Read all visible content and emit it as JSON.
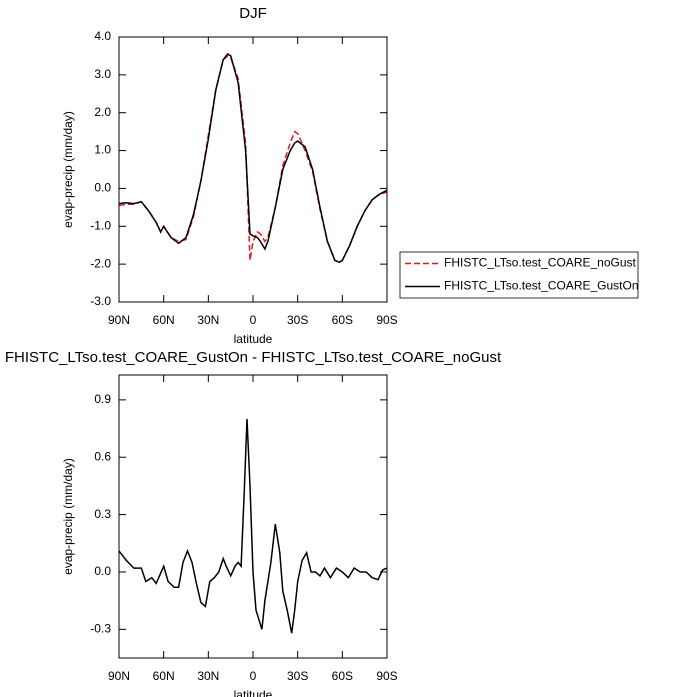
{
  "chart_data": [
    {
      "type": "line",
      "title": "DJF",
      "xlabel": "latitude",
      "ylabel": "evap-precip (mm/day)",
      "x": [
        90,
        85,
        80,
        75,
        70,
        65,
        62,
        60,
        55,
        50,
        45,
        40,
        35,
        30,
        25,
        20,
        17,
        15,
        10,
        5,
        2,
        0,
        -3,
        -5,
        -8,
        -10,
        -15,
        -20,
        -25,
        -28,
        -30,
        -35,
        -40,
        -45,
        -50,
        -55,
        -58,
        -60,
        -65,
        -70,
        -75,
        -80,
        -85,
        -90
      ],
      "series": [
        {
          "name": "FHISTC_LTso.test_COARE_noGust",
          "color": "#e0191c",
          "dash": true,
          "values": [
            -0.45,
            -0.42,
            -0.42,
            -0.35,
            -0.6,
            -0.9,
            -1.15,
            -1.0,
            -1.3,
            -1.4,
            -1.35,
            -0.75,
            0.2,
            1.4,
            2.6,
            3.4,
            3.5,
            3.45,
            2.9,
            1.2,
            -1.9,
            -1.4,
            -1.15,
            -1.2,
            -1.4,
            -1.3,
            -0.5,
            0.6,
            1.2,
            1.5,
            1.45,
            1.0,
            0.45,
            -0.55,
            -1.4,
            -1.9,
            -1.95,
            -1.9,
            -1.5,
            -1.0,
            -0.6,
            -0.3,
            -0.15,
            -0.1
          ]
        },
        {
          "name": "FHISTC_LTso.test_COARE_GustOn",
          "color": "#000000",
          "dash": false,
          "values": [
            -0.4,
            -0.38,
            -0.4,
            -0.35,
            -0.6,
            -0.9,
            -1.15,
            -1.0,
            -1.3,
            -1.45,
            -1.3,
            -0.7,
            0.2,
            1.3,
            2.6,
            3.4,
            3.55,
            3.5,
            2.8,
            1.0,
            -1.2,
            -1.25,
            -1.3,
            -1.4,
            -1.6,
            -1.4,
            -0.5,
            0.5,
            1.0,
            1.2,
            1.25,
            1.1,
            0.5,
            -0.5,
            -1.4,
            -1.9,
            -1.95,
            -1.9,
            -1.5,
            -1.0,
            -0.6,
            -0.3,
            -0.15,
            -0.05
          ]
        }
      ],
      "legend": "right",
      "xlim": [
        90,
        -90
      ],
      "ylim": [
        -3,
        4
      ],
      "xticks": [
        {
          "value": 90,
          "label": "90N"
        },
        {
          "value": 60,
          "label": "60N"
        },
        {
          "value": 30,
          "label": "30N"
        },
        0,
        {
          "value": -30,
          "label": "30S"
        },
        {
          "value": -60,
          "label": "60S"
        },
        {
          "value": -90,
          "label": "90S"
        }
      ],
      "yticks": [
        {
          "value": -3,
          "label": "-3.0"
        },
        {
          "value": -2,
          "label": "-2.0"
        },
        {
          "value": -1,
          "label": "-1.0"
        },
        {
          "value": 0,
          "label": "0.0"
        },
        {
          "value": 1,
          "label": "1.0"
        },
        {
          "value": 2,
          "label": "2.0"
        },
        {
          "value": 3,
          "label": "3.0"
        },
        {
          "value": 4,
          "label": "4.0"
        }
      ]
    },
    {
      "type": "line",
      "title": "FHISTC_LTso.test_COARE_GustOn - FHISTC_LTso.test_COARE_noGust",
      "xlabel": "latitude",
      "ylabel": "evap-precip (mm/day)",
      "x": [
        90,
        85,
        80,
        75,
        72,
        68,
        65,
        60,
        57,
        53,
        50,
        47,
        44,
        41,
        38,
        35,
        32,
        29,
        26,
        23,
        20,
        18,
        15,
        12,
        10,
        8,
        6,
        4,
        2,
        0,
        -2,
        -4,
        -6,
        -8,
        -10,
        -12,
        -15,
        -18,
        -20,
        -23,
        -26,
        -28,
        -30,
        -33,
        -36,
        -39,
        -42,
        -45,
        -48,
        -52,
        -56,
        -60,
        -64,
        -68,
        -72,
        -76,
        -80,
        -84,
        -87,
        -90
      ],
      "series": [
        {
          "color": "#000000",
          "dash": false,
          "values": [
            0.11,
            0.06,
            0.02,
            0.02,
            -0.05,
            -0.03,
            -0.06,
            0.03,
            -0.05,
            -0.08,
            -0.08,
            0.05,
            0.11,
            0.05,
            -0.06,
            -0.16,
            -0.18,
            -0.05,
            -0.03,
            0.0,
            0.07,
            0.03,
            -0.02,
            0.03,
            0.05,
            0.03,
            0.4,
            0.8,
            0.45,
            0.0,
            -0.2,
            -0.25,
            -0.3,
            -0.15,
            -0.05,
            0.05,
            0.25,
            0.1,
            -0.1,
            -0.2,
            -0.32,
            -0.2,
            -0.05,
            0.06,
            0.1,
            0.0,
            0.0,
            -0.02,
            0.02,
            -0.03,
            0.02,
            0.0,
            -0.03,
            0.02,
            0.0,
            0.0,
            -0.03,
            -0.04,
            0.01,
            0.02
          ]
        }
      ],
      "xlim": [
        90,
        -90
      ],
      "ylim": [
        -0.45,
        1.03
      ],
      "xticks": [
        {
          "value": 90,
          "label": "90N"
        },
        {
          "value": 60,
          "label": "60N"
        },
        {
          "value": 30,
          "label": "30N"
        },
        0,
        {
          "value": -30,
          "label": "30S"
        },
        {
          "value": -60,
          "label": "60S"
        },
        {
          "value": -90,
          "label": "90S"
        }
      ],
      "yticks": [
        -0.3,
        {
          "value": 0,
          "label": "0.0"
        },
        0.3,
        0.6,
        0.9
      ]
    }
  ]
}
